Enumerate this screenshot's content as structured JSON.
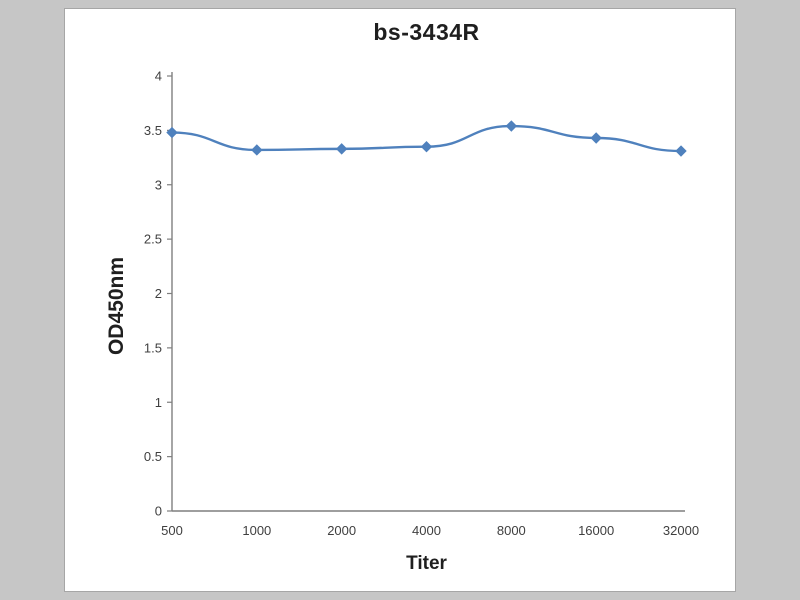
{
  "chart_data": {
    "type": "line",
    "title": "bs-3434R",
    "xlabel": "Titer",
    "ylabel": "OD450nm",
    "categories": [
      "500",
      "1000",
      "2000",
      "4000",
      "8000",
      "16000",
      "32000"
    ],
    "values": [
      3.48,
      3.32,
      3.33,
      3.35,
      3.54,
      3.43,
      3.31
    ],
    "ylim": [
      0,
      4
    ],
    "ytick_step": 0.5,
    "ytick_labels": [
      "0",
      "0.5",
      "1",
      "1.5",
      "2",
      "2.5",
      "3",
      "3.5",
      "4"
    ],
    "grid": false,
    "legend_position": "none",
    "line_color": "#4f81bd",
    "marker": "diamond",
    "axis_color": "#7f7f7f",
    "background_color": "#c6c6c6",
    "plot_background_color": "#ffffff"
  }
}
